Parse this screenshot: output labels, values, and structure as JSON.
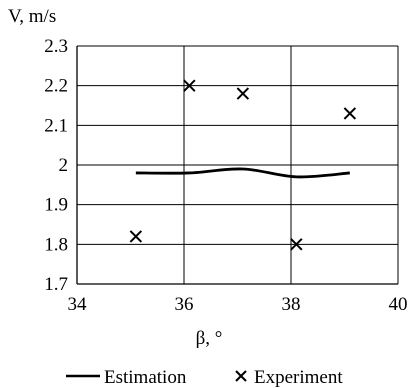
{
  "chart_data": {
    "type": "line",
    "title": "",
    "xlabel": "β, °",
    "ylabel": "V, m/s",
    "xlim": [
      34,
      40
    ],
    "ylim": [
      1.7,
      2.3
    ],
    "x_ticks": [
      "34",
      "36",
      "38",
      "40"
    ],
    "y_ticks": [
      "1.7",
      "1.8",
      "1.9",
      "2",
      "2.1",
      "2.2",
      "2.3"
    ],
    "grid": "vertical and horizontal",
    "legend_position": "bottom",
    "series": [
      {
        "name": "Estimation",
        "style": "line",
        "color": "#000000",
        "x": [
          35.1,
          36.1,
          37.1,
          38.1,
          39.1
        ],
        "y": [
          1.98,
          1.98,
          1.99,
          1.97,
          1.98
        ]
      },
      {
        "name": "Experiment",
        "style": "x-marker",
        "color": "#000000",
        "x": [
          35.1,
          36.1,
          37.1,
          38.1,
          39.1
        ],
        "y": [
          1.82,
          2.2,
          2.18,
          1.8,
          2.13
        ]
      }
    ]
  }
}
